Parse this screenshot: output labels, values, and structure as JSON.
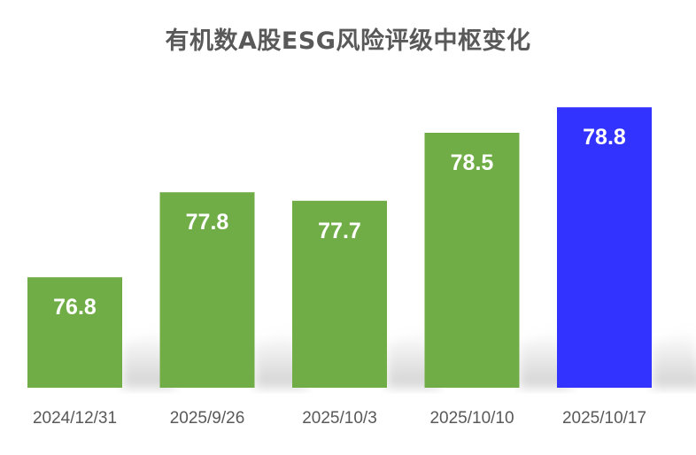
{
  "chart_data": {
    "type": "bar",
    "title": "有机数A股ESG风险评级中枢变化",
    "categories": [
      "2024/12/31",
      "2025/9/26",
      "2025/10/3",
      "2025/10/10",
      "2025/10/17"
    ],
    "values": [
      76.8,
      77.8,
      77.7,
      78.5,
      78.8
    ],
    "data_labels": [
      "76.8",
      "77.8",
      "77.7",
      "78.5",
      "78.8"
    ],
    "colors": [
      "#70AD47",
      "#70AD47",
      "#70AD47",
      "#70AD47",
      "#3333FF"
    ],
    "xlabel": "",
    "ylabel": "",
    "ylim": [
      75.5,
      79.0
    ],
    "grid": false,
    "legend": "none"
  }
}
